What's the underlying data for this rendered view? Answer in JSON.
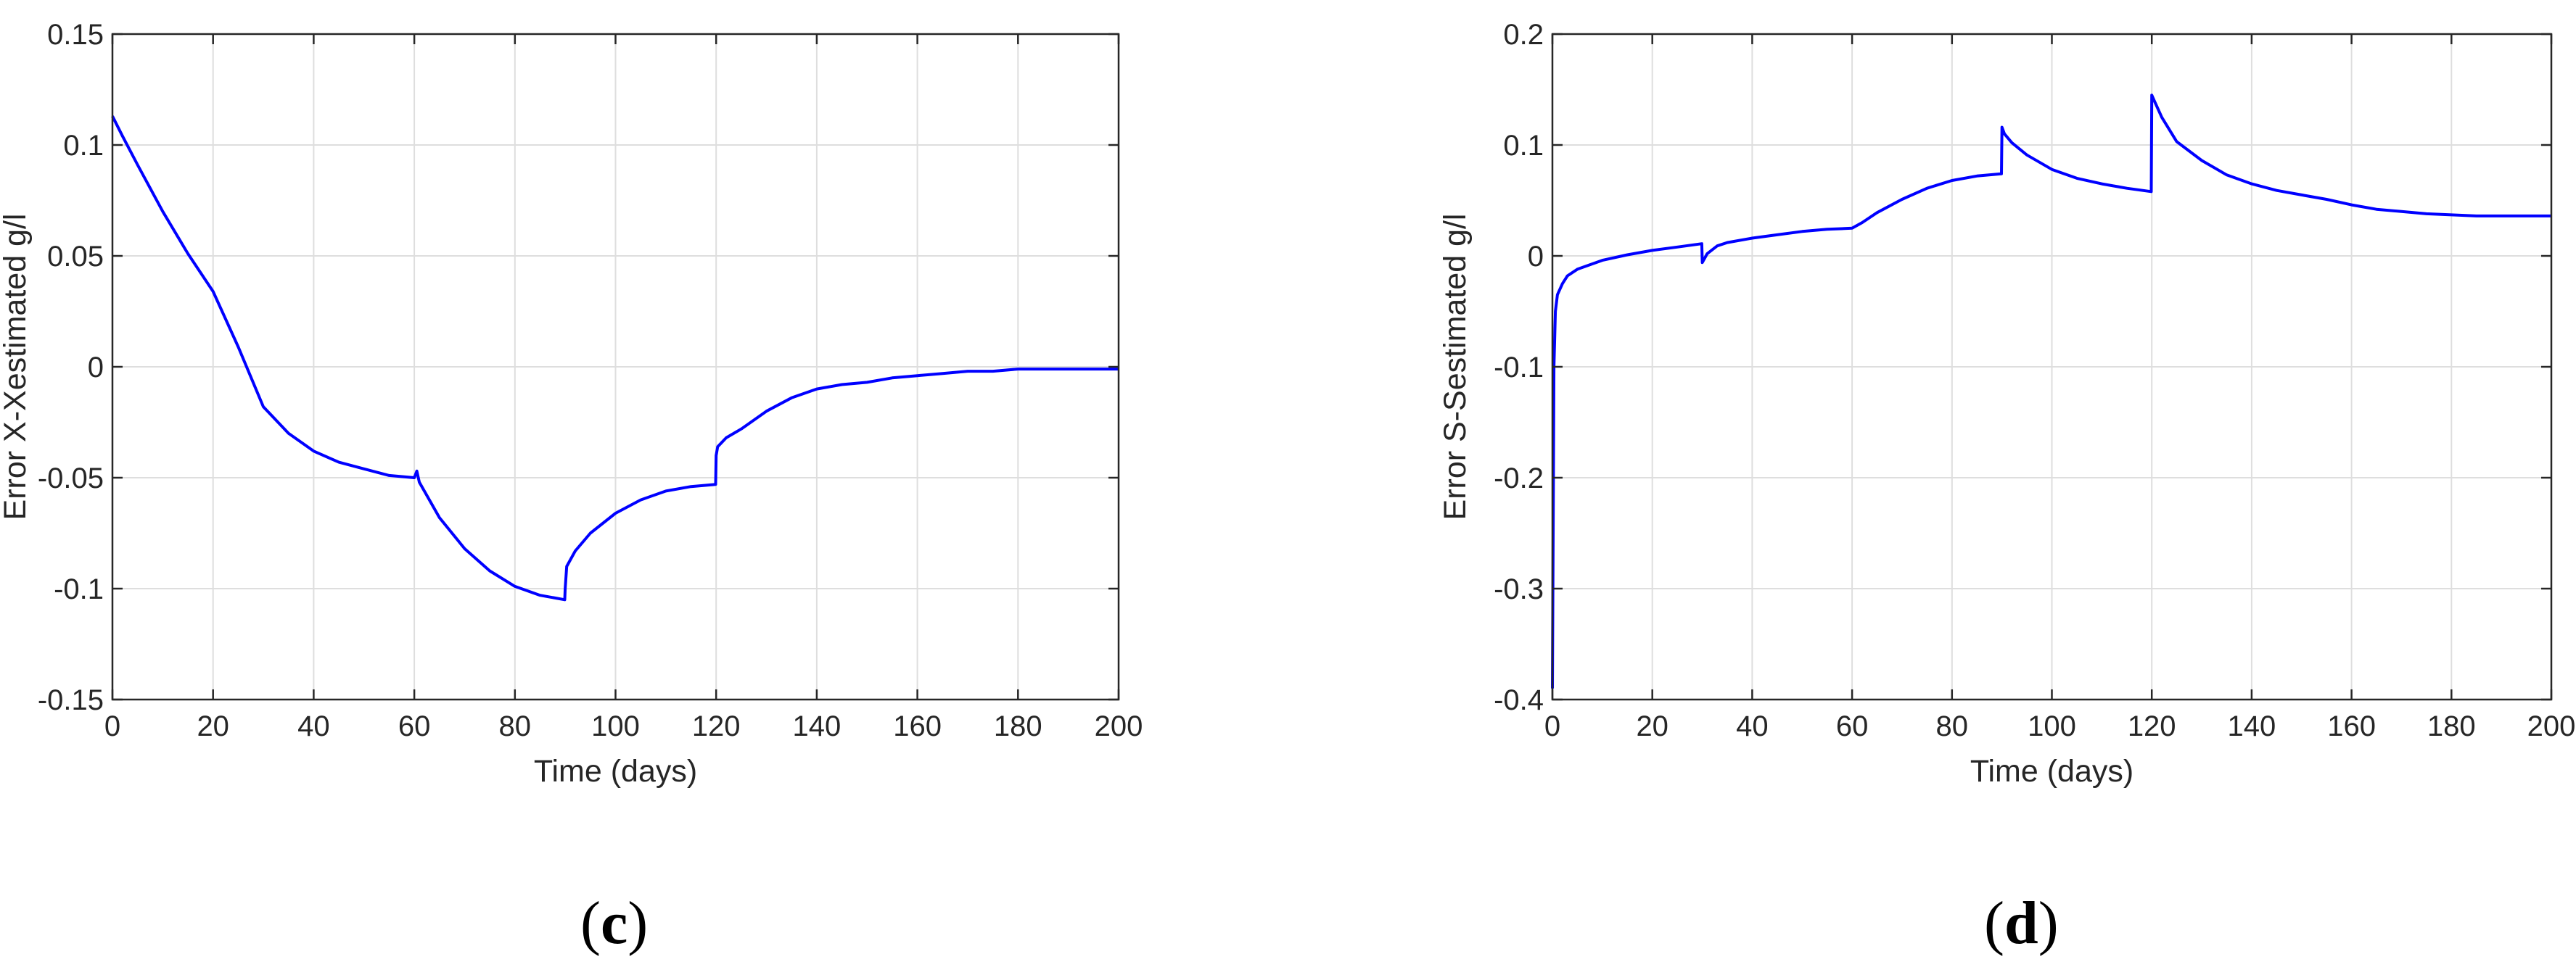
{
  "figure": {
    "panel_labels": [
      "c",
      "d"
    ]
  },
  "chart_data": [
    {
      "type": "line",
      "panel": "c",
      "title": "",
      "xlabel": "Time (days)",
      "ylabel": "Error X-Xestimated g/l",
      "xlim": [
        0,
        200
      ],
      "ylim": [
        -0.15,
        0.15
      ],
      "xticks": [
        0,
        20,
        40,
        60,
        80,
        100,
        120,
        140,
        160,
        180,
        200
      ],
      "yticks": [
        -0.15,
        -0.1,
        -0.05,
        0,
        0.05,
        0.1,
        0.15
      ],
      "ytick_labels": [
        "-0.15",
        "-0.1",
        "-0.05",
        "0",
        "0.05",
        "0.1",
        "0.15"
      ],
      "grid": true,
      "line_color": "#0000ff",
      "series": [
        {
          "x": [
            0,
            2,
            5,
            10,
            15,
            20,
            25,
            30,
            35,
            40,
            45,
            50,
            55,
            60,
            60.5,
            61,
            65,
            70,
            75,
            80,
            85,
            89.9,
            90,
            90.3,
            92,
            95,
            100,
            105,
            110,
            115,
            119.9,
            120,
            120.3,
            122,
            125,
            130,
            135,
            140,
            145,
            150,
            155,
            160,
            165,
            170,
            175,
            180,
            185,
            190,
            195,
            200
          ],
          "y": [
            0.113,
            0.104,
            0.091,
            0.07,
            0.051,
            0.034,
            0.009,
            -0.018,
            -0.03,
            -0.038,
            -0.043,
            -0.046,
            -0.049,
            -0.05,
            -0.047,
            -0.052,
            -0.068,
            -0.082,
            -0.092,
            -0.099,
            -0.103,
            -0.105,
            -0.1,
            -0.09,
            -0.083,
            -0.075,
            -0.066,
            -0.06,
            -0.056,
            -0.054,
            -0.053,
            -0.04,
            -0.036,
            -0.032,
            -0.028,
            -0.02,
            -0.014,
            -0.01,
            -0.008,
            -0.007,
            -0.005,
            -0.004,
            -0.003,
            -0.002,
            -0.002,
            -0.001,
            -0.001,
            -0.001,
            -0.001,
            -0.001
          ]
        }
      ]
    },
    {
      "type": "line",
      "panel": "d",
      "title": "",
      "xlabel": "Time (days)",
      "ylabel": "Error S-Sestimated g/l",
      "xlim": [
        0,
        200
      ],
      "ylim": [
        -0.4,
        0.2
      ],
      "xticks": [
        0,
        20,
        40,
        60,
        80,
        100,
        120,
        140,
        160,
        180,
        200
      ],
      "yticks": [
        -0.4,
        -0.3,
        -0.2,
        -0.1,
        0,
        0.1,
        0.2
      ],
      "ytick_labels": [
        "-0.4",
        "-0.3",
        "-0.2",
        "-0.1",
        "0",
        "0.1",
        "0.2"
      ],
      "grid": true,
      "line_color": "#0000ff",
      "series": [
        {
          "x": [
            0,
            0.3,
            0.6,
            1,
            2,
            3,
            5,
            10,
            15,
            20,
            25,
            29.9,
            30,
            31,
            33,
            35,
            40,
            45,
            50,
            55,
            60,
            62,
            65,
            70,
            75,
            80,
            85,
            89.9,
            90,
            90.5,
            92,
            95,
            100,
            105,
            110,
            115,
            119.9,
            120,
            120.5,
            122,
            125,
            130,
            135,
            140,
            145,
            150,
            155,
            160,
            165,
            170,
            175,
            180,
            185,
            190,
            195,
            200
          ],
          "y": [
            -0.39,
            -0.1,
            -0.05,
            -0.035,
            -0.025,
            -0.018,
            -0.012,
            -0.004,
            0.001,
            0.005,
            0.008,
            0.011,
            -0.006,
            0.002,
            0.009,
            0.012,
            0.016,
            0.019,
            0.022,
            0.024,
            0.025,
            0.03,
            0.039,
            0.051,
            0.061,
            0.068,
            0.072,
            0.074,
            0.116,
            0.11,
            0.102,
            0.091,
            0.078,
            0.07,
            0.065,
            0.061,
            0.058,
            0.145,
            0.14,
            0.125,
            0.103,
            0.086,
            0.073,
            0.065,
            0.059,
            0.055,
            0.051,
            0.046,
            0.042,
            0.04,
            0.038,
            0.037,
            0.036,
            0.036,
            0.036,
            0.036
          ]
        }
      ]
    }
  ]
}
